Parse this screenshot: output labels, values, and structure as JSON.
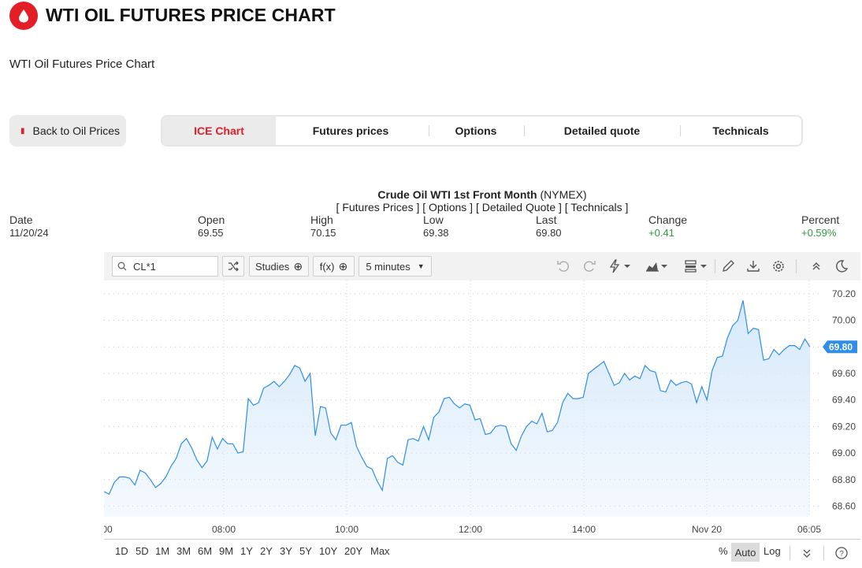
{
  "header": {
    "title": "WTI OIL FUTURES PRICE CHART",
    "subtitle": "WTI Oil Futures Price Chart",
    "brand_color": "#e21e26"
  },
  "back_button": {
    "label": "Back to Oil Prices"
  },
  "tabs": [
    {
      "label": "ICE Chart",
      "active": true
    },
    {
      "label": "Futures prices",
      "active": false
    },
    {
      "label": "Options",
      "active": false
    },
    {
      "label": "Detailed quote",
      "active": false
    },
    {
      "label": "Technicals",
      "active": false
    }
  ],
  "quote": {
    "name": "Crude Oil WTI 1st Front Month",
    "exchange": "(NYMEX)",
    "links": "[ Futures Prices ] [ Options ] [ Detailed Quote ] [ Technicals ]",
    "date_label": "Date",
    "date": "11/20/24",
    "open_label": "Open",
    "open": "69.55",
    "high_label": "High",
    "high": "70.15",
    "low_label": "Low",
    "low": "69.38",
    "last_label": "Last",
    "last": "69.80",
    "change_label": "Change",
    "change": "+0.41",
    "percent_label": "Percent",
    "percent": "+0.59%",
    "positive_color": "#2e9a3c"
  },
  "toolbar": {
    "search_value": "CL*1",
    "studies_label": "Studies",
    "fx_label": "f(x)",
    "interval_label": "5 minutes",
    "icons": [
      "search-icon",
      "shuffle-icon",
      "plus-circle-icon",
      "undo-icon",
      "redo-icon",
      "flash-icon",
      "chart-type-icon",
      "layout-icon",
      "pencil-icon",
      "download-icon",
      "settings-icon",
      "collapse-icon",
      "moon-icon"
    ]
  },
  "bottom_bar": {
    "ranges": [
      "1D",
      "5D",
      "1M",
      "3M",
      "6M",
      "9M",
      "1Y",
      "2Y",
      "3Y",
      "5Y",
      "10Y",
      "20Y",
      "Max"
    ],
    "percent_label": "%",
    "auto_label": "Auto",
    "log_label": "Log"
  },
  "chart_data": {
    "type": "area",
    "line_color": "#2f8ee5",
    "fill_color": "#d6e9fb",
    "ylim": [
      68.52,
      70.3
    ],
    "y_ticks": [
      "70.20",
      "70.00",
      "69.80",
      "69.60",
      "69.40",
      "69.20",
      "69.00",
      "68.80",
      "68.60"
    ],
    "x_ticks": [
      "00",
      "08:00",
      "10:00",
      "12:00",
      "14:00",
      "Nov 20",
      "06:05"
    ],
    "last_value": "69.80",
    "values": [
      68.71,
      68.69,
      68.78,
      68.82,
      68.82,
      68.81,
      68.76,
      68.87,
      68.85,
      68.8,
      68.74,
      68.77,
      68.82,
      68.9,
      68.96,
      69.07,
      69.11,
      69.04,
      68.95,
      68.89,
      68.94,
      69.12,
      69.03,
      69.11,
      69.07,
      69.07,
      69.0,
      69.01,
      69.41,
      69.36,
      69.38,
      69.49,
      69.51,
      69.54,
      69.5,
      69.54,
      69.59,
      69.66,
      69.64,
      69.54,
      69.6,
      69.13,
      69.35,
      69.34,
      69.15,
      69.1,
      69.21,
      69.21,
      69.23,
      69.05,
      68.97,
      68.9,
      68.88,
      68.79,
      68.72,
      68.96,
      68.98,
      68.93,
      68.91,
      69.1,
      69.11,
      69.09,
      69.2,
      69.1,
      69.27,
      69.31,
      69.41,
      69.42,
      69.37,
      69.34,
      69.37,
      69.36,
      69.25,
      69.26,
      69.14,
      69.15,
      69.2,
      69.21,
      69.2,
      69.07,
      69.02,
      69.13,
      69.2,
      69.24,
      69.22,
      69.3,
      69.16,
      69.17,
      69.23,
      69.38,
      69.45,
      69.41,
      69.41,
      69.42,
      69.6,
      69.63,
      69.66,
      69.69,
      69.6,
      69.51,
      69.53,
      69.6,
      69.55,
      69.58,
      69.56,
      69.66,
      69.62,
      69.61,
      69.47,
      69.46,
      69.55,
      69.51,
      69.53,
      69.54,
      69.52,
      69.38,
      69.5,
      69.4,
      69.62,
      69.72,
      69.73,
      69.87,
      69.96,
      70.0,
      70.15,
      69.9,
      69.94,
      69.93,
      69.7,
      69.71,
      69.78,
      69.74,
      69.78,
      69.81,
      69.81,
      69.78,
      69.86,
      69.8
    ],
    "grid": true
  }
}
